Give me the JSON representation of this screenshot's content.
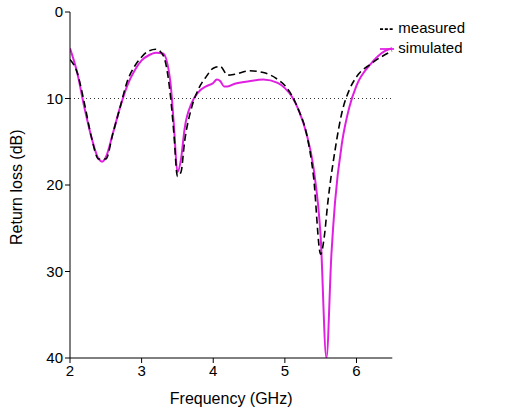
{
  "chart_data": {
    "type": "line",
    "x_label": "Frequency (GHz)",
    "y_label": "Return loss (dB)",
    "xlim": [
      2,
      6.5
    ],
    "xticks": [
      2,
      3,
      4,
      5,
      6
    ],
    "ylim": [
      0,
      40
    ],
    "yticks": [
      0,
      10,
      20,
      30,
      40
    ],
    "y_reversed": true,
    "grid": false,
    "legend": "upper right",
    "reference_line": 10,
    "series": [
      {
        "name": "simulated",
        "color": "#e020e0",
        "line_style": "solid",
        "x": [
          2.0,
          2.1,
          2.2,
          2.3,
          2.4,
          2.45,
          2.5,
          2.6,
          2.7,
          2.8,
          2.9,
          3.0,
          3.1,
          3.2,
          3.3,
          3.4,
          3.45,
          3.5,
          3.55,
          3.6,
          3.7,
          3.8,
          3.9,
          4.0,
          4.05,
          4.1,
          4.15,
          4.2,
          4.3,
          4.5,
          4.7,
          4.9,
          5.0,
          5.1,
          5.2,
          5.3,
          5.4,
          5.5,
          5.58,
          5.65,
          5.7,
          5.8,
          5.9,
          6.0,
          6.2,
          6.4,
          6.5
        ],
        "values": [
          4.2,
          7,
          11,
          14.5,
          17,
          17.3,
          16.8,
          14,
          11,
          8.5,
          6.8,
          5.6,
          5,
          4.7,
          4.8,
          8,
          13,
          18.5,
          17,
          13.5,
          10.5,
          9.2,
          8.6,
          8.2,
          7.8,
          8,
          8.6,
          8.6,
          8.3,
          8,
          7.8,
          8.2,
          8.8,
          9.8,
          11.5,
          14,
          18,
          26,
          40,
          28,
          22,
          15,
          11,
          8.5,
          6,
          4.5,
          4.2
        ]
      },
      {
        "name": "measured",
        "color": "#000000",
        "line_style": "dashed",
        "x": [
          2.0,
          2.1,
          2.2,
          2.3,
          2.4,
          2.5,
          2.6,
          2.7,
          2.8,
          2.9,
          3.0,
          3.1,
          3.2,
          3.3,
          3.4,
          3.45,
          3.5,
          3.55,
          3.6,
          3.7,
          3.8,
          3.9,
          4.0,
          4.1,
          4.2,
          4.3,
          4.5,
          4.7,
          4.9,
          5.0,
          5.1,
          5.2,
          5.3,
          5.4,
          5.5,
          5.55,
          5.6,
          5.7,
          5.8,
          5.9,
          6.0,
          6.2,
          6.5
        ],
        "values": [
          5.5,
          7,
          10.5,
          14.5,
          17,
          17,
          14,
          11,
          8,
          6.3,
          5.2,
          4.5,
          4.3,
          5,
          9.5,
          14,
          19,
          18.5,
          15,
          11,
          8.8,
          7.5,
          6.5,
          6.3,
          7.3,
          7.2,
          6.8,
          7,
          7.8,
          8.5,
          9.7,
          11.5,
          14,
          19,
          28,
          26,
          22,
          16,
          11.5,
          9,
          7.5,
          6,
          4.5
        ]
      }
    ]
  }
}
